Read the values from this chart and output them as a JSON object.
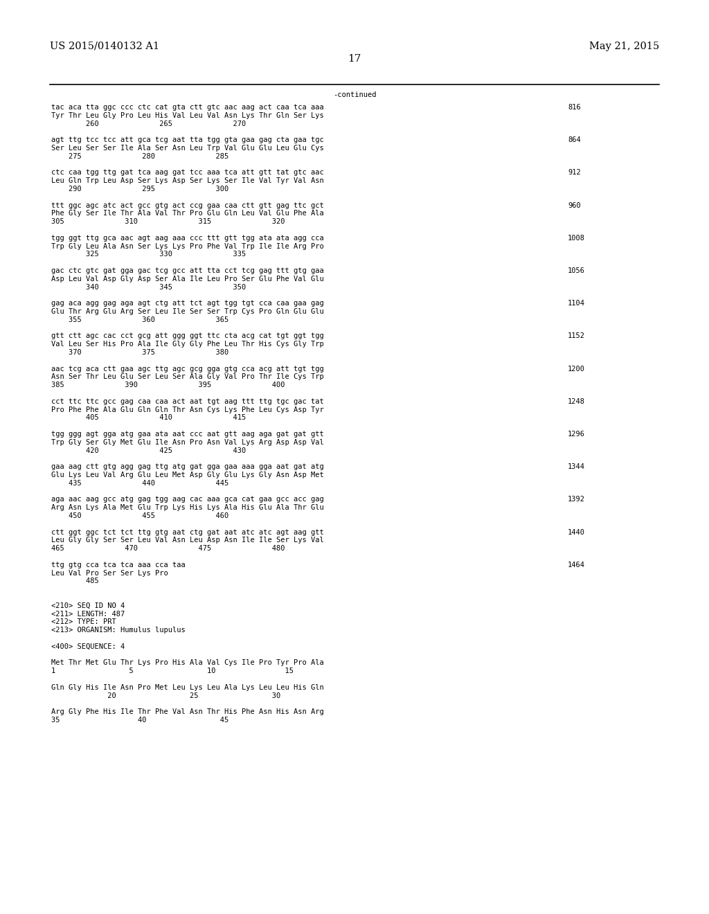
{
  "header_left": "US 2015/0140132 A1",
  "header_right": "May 21, 2015",
  "page_number": "17",
  "continued_label": "-continued",
  "background_color": "#ffffff",
  "text_color": "#000000",
  "font_size_header": 10.5,
  "font_size_body": 7.5,
  "font_size_page": 11,
  "lines": [
    [
      "tac aca tta ggc ccc ctc cat gta ctt gtc aac aag act caa tca aaa",
      "816"
    ],
    [
      "Tyr Thr Leu Gly Pro Leu His Val Leu Val Asn Lys Thr Gln Ser Lys",
      ""
    ],
    [
      "        260              265              270",
      ""
    ],
    [
      "",
      ""
    ],
    [
      "agt ttg tcc tcc att gca tcg aat tta tgg gta gaa gag cta gaa tgc",
      "864"
    ],
    [
      "Ser Leu Ser Ser Ile Ala Ser Asn Leu Trp Val Glu Glu Leu Glu Cys",
      ""
    ],
    [
      "    275              280              285",
      ""
    ],
    [
      "",
      ""
    ],
    [
      "ctc caa tgg ttg gat tca aag gat tcc aaa tca att gtt tat gtc aac",
      "912"
    ],
    [
      "Leu Gln Trp Leu Asp Ser Lys Asp Ser Lys Ser Ile Val Tyr Val Asn",
      ""
    ],
    [
      "    290              295              300",
      ""
    ],
    [
      "",
      ""
    ],
    [
      "ttt ggc agc atc act gcc gtg act ccg gaa caa ctt gtt gag ttc gct",
      "960"
    ],
    [
      "Phe Gly Ser Ile Thr Ala Val Thr Pro Glu Gln Leu Val Glu Phe Ala",
      ""
    ],
    [
      "305              310              315              320",
      ""
    ],
    [
      "",
      ""
    ],
    [
      "tgg ggt ttg gca aac agt aag aaa ccc ttt gtt tgg ata ata agg cca",
      "1008"
    ],
    [
      "Trp Gly Leu Ala Asn Ser Lys Lys Pro Phe Val Trp Ile Ile Arg Pro",
      ""
    ],
    [
      "        325              330              335",
      ""
    ],
    [
      "",
      ""
    ],
    [
      "gac ctc gtc gat gga gac tcg gcc att tta cct tcg gag ttt gtg gaa",
      "1056"
    ],
    [
      "Asp Leu Val Asp Gly Asp Ser Ala Ile Leu Pro Ser Glu Phe Val Glu",
      ""
    ],
    [
      "        340              345              350",
      ""
    ],
    [
      "",
      ""
    ],
    [
      "gag aca agg gag aga agt ctg att tct agt tgg tgt cca caa gaa gag",
      "1104"
    ],
    [
      "Glu Thr Arg Glu Arg Ser Leu Ile Ser Ser Trp Cys Pro Gln Glu Glu",
      ""
    ],
    [
      "    355              360              365",
      ""
    ],
    [
      "",
      ""
    ],
    [
      "gtt ctt agc cac cct gcg att ggg ggt ttc cta acg cat tgt ggt tgg",
      "1152"
    ],
    [
      "Val Leu Ser His Pro Ala Ile Gly Gly Phe Leu Thr His Cys Gly Trp",
      ""
    ],
    [
      "    370              375              380",
      ""
    ],
    [
      "",
      ""
    ],
    [
      "aac tcg aca ctt gaa agc ttg agc gcg gga gtg cca acg att tgt tgg",
      "1200"
    ],
    [
      "Asn Ser Thr Leu Glu Ser Leu Ser Ala Gly Val Pro Thr Ile Cys Trp",
      ""
    ],
    [
      "385              390              395              400",
      ""
    ],
    [
      "",
      ""
    ],
    [
      "cct ttc ttc gcc gag caa caa act aat tgt aag ttt ttg tgc gac tat",
      "1248"
    ],
    [
      "Pro Phe Phe Ala Glu Gln Gln Thr Asn Cys Lys Phe Leu Cys Asp Tyr",
      ""
    ],
    [
      "        405              410              415",
      ""
    ],
    [
      "",
      ""
    ],
    [
      "tgg ggg agt gga atg gaa ata aat ccc aat gtt aag aga gat gat gtt",
      "1296"
    ],
    [
      "Trp Gly Ser Gly Met Glu Ile Asn Pro Asn Val Lys Arg Asp Asp Val",
      ""
    ],
    [
      "        420              425              430",
      ""
    ],
    [
      "",
      ""
    ],
    [
      "gaa aag ctt gtg agg gag ttg atg gat gga gaa aaa gga aat gat atg",
      "1344"
    ],
    [
      "Glu Lys Leu Val Arg Glu Leu Met Asp Gly Glu Lys Gly Asn Asp Met",
      ""
    ],
    [
      "    435              440              445",
      ""
    ],
    [
      "",
      ""
    ],
    [
      "aga aac aag gcc atg gag tgg aag cac aaa gca cat gaa gcc acc gag",
      "1392"
    ],
    [
      "Arg Asn Lys Ala Met Glu Trp Lys His Lys Ala His Glu Ala Thr Glu",
      ""
    ],
    [
      "    450              455              460",
      ""
    ],
    [
      "",
      ""
    ],
    [
      "ctt ggt ggc tct tct ttg gtg aat ctg gat aat atc atc agt aag gtt",
      "1440"
    ],
    [
      "Leu Gly Gly Ser Ser Leu Val Asn Leu Asp Asn Ile Ile Ser Lys Val",
      ""
    ],
    [
      "465              470              475              480",
      ""
    ],
    [
      "",
      ""
    ],
    [
      "ttg gtg cca tca tca aaa cca taa",
      "1464"
    ],
    [
      "Leu Val Pro Ser Ser Lys Pro",
      ""
    ],
    [
      "        485",
      ""
    ],
    [
      "",
      ""
    ],
    [
      "",
      ""
    ],
    [
      "<210> SEQ ID NO 4",
      ""
    ],
    [
      "<211> LENGTH: 487",
      ""
    ],
    [
      "<212> TYPE: PRT",
      ""
    ],
    [
      "<213> ORGANISM: Humulus lupulus",
      ""
    ],
    [
      "",
      ""
    ],
    [
      "<400> SEQUENCE: 4",
      ""
    ],
    [
      "",
      ""
    ],
    [
      "Met Thr Met Glu Thr Lys Pro His Ala Val Cys Ile Pro Tyr Pro Ala",
      ""
    ],
    [
      "1                 5                 10                15",
      ""
    ],
    [
      "",
      ""
    ],
    [
      "Gln Gly His Ile Asn Pro Met Leu Lys Leu Ala Lys Leu Leu His Gln",
      ""
    ],
    [
      "             20                 25                 30",
      ""
    ],
    [
      "",
      ""
    ],
    [
      "Arg Gly Phe His Ile Thr Phe Val Asn Thr His Phe Asn His Asn Arg",
      ""
    ],
    [
      "35                  40                 45",
      ""
    ]
  ]
}
